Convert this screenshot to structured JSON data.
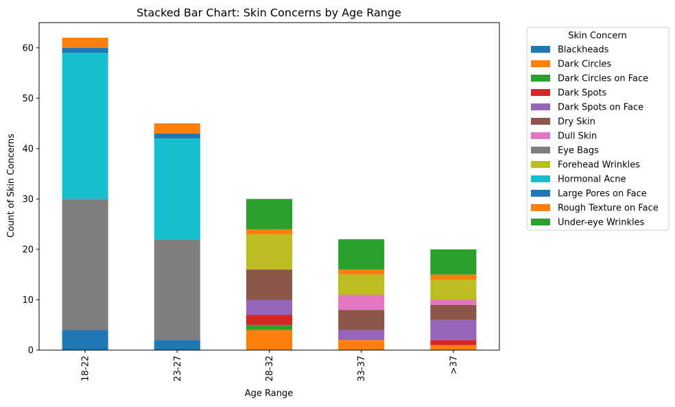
{
  "chart_data": {
    "type": "bar",
    "stacked": true,
    "title": "Stacked Bar Chart: Skin Concerns by Age Range",
    "xlabel": "Age Range",
    "ylabel": "Count of Skin Concerns",
    "ylim": [
      0,
      65
    ],
    "yticks": [
      0,
      10,
      20,
      30,
      40,
      50,
      60
    ],
    "categories": [
      "18-22",
      "23-27",
      "28-32",
      "33-37",
      ">37"
    ],
    "legend_title": "Skin Concern",
    "legend_position": "outside-right",
    "series": [
      {
        "name": "Blackheads",
        "color": "#1f77b4",
        "values": [
          4,
          2,
          0,
          0,
          0
        ]
      },
      {
        "name": "Dark Circles",
        "color": "#ff7f0e",
        "values": [
          0,
          0,
          4,
          2,
          1
        ]
      },
      {
        "name": "Dark Circles on Face",
        "color": "#2ca02c",
        "values": [
          0,
          0,
          1,
          0,
          0
        ]
      },
      {
        "name": "Dark Spots",
        "color": "#d62728",
        "values": [
          0,
          0,
          2,
          0,
          1
        ]
      },
      {
        "name": "Dark Spots on Face",
        "color": "#9467bd",
        "values": [
          0,
          0,
          3,
          2,
          4
        ]
      },
      {
        "name": "Dry Skin",
        "color": "#8c564b",
        "values": [
          0,
          0,
          6,
          4,
          3
        ]
      },
      {
        "name": "Dull Skin",
        "color": "#e377c2",
        "values": [
          0,
          0,
          0,
          3,
          1
        ]
      },
      {
        "name": "Eye Bags",
        "color": "#7f7f7f",
        "values": [
          26,
          20,
          0,
          0,
          0
        ]
      },
      {
        "name": "Forehead Wrinkles",
        "color": "#bcbd22",
        "values": [
          0,
          0,
          7,
          4,
          4
        ]
      },
      {
        "name": "Hormonal Acne",
        "color": "#17becf",
        "values": [
          29,
          20,
          0,
          0,
          0
        ]
      },
      {
        "name": "Large Pores on Face",
        "color": "#1f77b4",
        "values": [
          1,
          1,
          0,
          0,
          0
        ]
      },
      {
        "name": "Rough Texture on Face",
        "color": "#ff7f0e",
        "values": [
          2,
          2,
          1,
          1,
          1
        ]
      },
      {
        "name": "Under-eye Wrinkles",
        "color": "#2ca02c",
        "values": [
          0,
          0,
          6,
          6,
          5
        ]
      }
    ]
  }
}
